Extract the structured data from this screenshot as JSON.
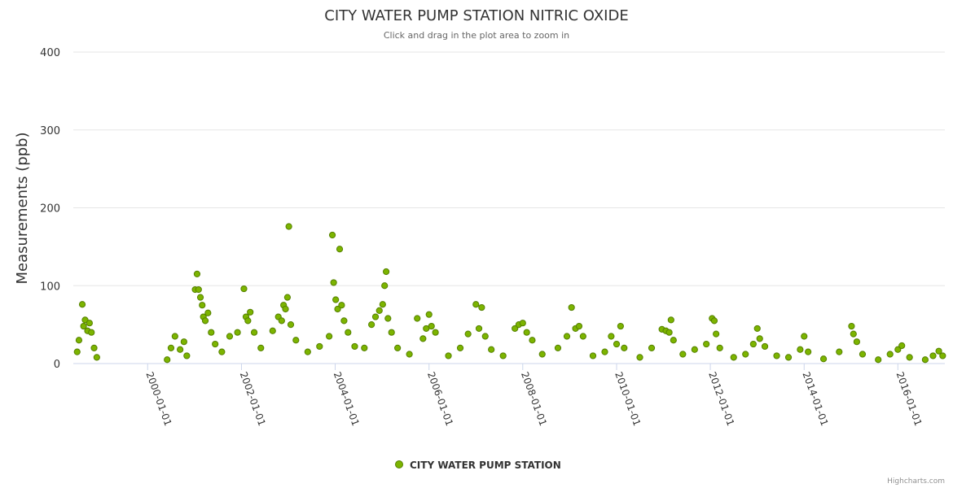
{
  "chart_data": {
    "type": "scatter",
    "title": "CITY WATER PUMP STATION NITRIC OXIDE",
    "subtitle": "Click and drag in the plot area to zoom in",
    "ylabel": "Measurements (ppb)",
    "xlabel": "",
    "ylim": [
      0,
      400
    ],
    "y_ticks": [
      "0",
      "100",
      "200",
      "300",
      "400"
    ],
    "x_ticks": [
      "2000-01-01",
      "2002-01-01",
      "2004-01-01",
      "2006-01-01",
      "2008-01-01",
      "2010-01-01",
      "2012-01-01",
      "2014-01-01",
      "2016-01-01"
    ],
    "x_range": [
      "1998-06-01",
      "2017-01-01"
    ],
    "grid": "horizontal",
    "legend_position": "bottom-center",
    "marker_color": "#7cb400",
    "marker_stroke": "#558000",
    "series": [
      {
        "name": "CITY WATER PUMP STATION",
        "points": [
          [
            "1998-07-01",
            15
          ],
          [
            "1998-07-15",
            30
          ],
          [
            "1998-08-10",
            76
          ],
          [
            "1998-08-20",
            48
          ],
          [
            "1998-09-01",
            56
          ],
          [
            "1998-09-20",
            42
          ],
          [
            "1998-10-05",
            52
          ],
          [
            "1998-10-20",
            40
          ],
          [
            "1998-11-10",
            20
          ],
          [
            "1998-12-01",
            8
          ],
          [
            "2000-06-01",
            5
          ],
          [
            "2000-07-01",
            20
          ],
          [
            "2000-08-01",
            35
          ],
          [
            "2000-09-10",
            18
          ],
          [
            "2000-10-10",
            28
          ],
          [
            "2000-11-01",
            10
          ],
          [
            "2001-01-05",
            95
          ],
          [
            "2001-01-20",
            115
          ],
          [
            "2001-02-01",
            95
          ],
          [
            "2001-02-15",
            85
          ],
          [
            "2001-03-01",
            75
          ],
          [
            "2001-03-10",
            60
          ],
          [
            "2001-03-25",
            55
          ],
          [
            "2001-04-15",
            65
          ],
          [
            "2001-05-10",
            40
          ],
          [
            "2001-06-10",
            25
          ],
          [
            "2001-08-01",
            15
          ],
          [
            "2001-10-01",
            35
          ],
          [
            "2001-12-01",
            40
          ],
          [
            "2002-01-20",
            96
          ],
          [
            "2002-02-05",
            60
          ],
          [
            "2002-02-20",
            55
          ],
          [
            "2002-03-10",
            66
          ],
          [
            "2002-04-10",
            40
          ],
          [
            "2002-06-01",
            20
          ],
          [
            "2002-09-01",
            42
          ],
          [
            "2002-10-15",
            60
          ],
          [
            "2002-11-10",
            55
          ],
          [
            "2002-11-25",
            75
          ],
          [
            "2002-12-10",
            70
          ],
          [
            "2002-12-25",
            85
          ],
          [
            "2003-01-05",
            176
          ],
          [
            "2003-01-20",
            50
          ],
          [
            "2003-03-01",
            30
          ],
          [
            "2003-06-01",
            15
          ],
          [
            "2003-09-01",
            22
          ],
          [
            "2003-11-15",
            35
          ],
          [
            "2003-12-10",
            165
          ],
          [
            "2003-12-20",
            104
          ],
          [
            "2004-01-05",
            82
          ],
          [
            "2004-01-20",
            70
          ],
          [
            "2004-02-05",
            147
          ],
          [
            "2004-02-20",
            75
          ],
          [
            "2004-03-10",
            55
          ],
          [
            "2004-04-10",
            40
          ],
          [
            "2004-06-01",
            22
          ],
          [
            "2004-08-15",
            20
          ],
          [
            "2004-10-10",
            50
          ],
          [
            "2004-11-10",
            60
          ],
          [
            "2004-12-10",
            68
          ],
          [
            "2005-01-05",
            76
          ],
          [
            "2005-01-20",
            100
          ],
          [
            "2005-02-01",
            118
          ],
          [
            "2005-02-15",
            58
          ],
          [
            "2005-03-15",
            40
          ],
          [
            "2005-05-01",
            20
          ],
          [
            "2005-08-01",
            12
          ],
          [
            "2005-10-01",
            58
          ],
          [
            "2005-11-15",
            32
          ],
          [
            "2005-12-10",
            45
          ],
          [
            "2006-01-01",
            63
          ],
          [
            "2006-01-20",
            48
          ],
          [
            "2006-02-20",
            40
          ],
          [
            "2006-06-01",
            10
          ],
          [
            "2006-09-01",
            20
          ],
          [
            "2006-11-01",
            38
          ],
          [
            "2007-01-01",
            76
          ],
          [
            "2007-01-25",
            45
          ],
          [
            "2007-02-15",
            72
          ],
          [
            "2007-03-15",
            35
          ],
          [
            "2007-05-01",
            18
          ],
          [
            "2007-08-01",
            10
          ],
          [
            "2007-11-01",
            45
          ],
          [
            "2007-12-01",
            50
          ],
          [
            "2008-01-01",
            52
          ],
          [
            "2008-02-01",
            40
          ],
          [
            "2008-03-15",
            30
          ],
          [
            "2008-06-01",
            12
          ],
          [
            "2008-10-01",
            20
          ],
          [
            "2008-12-10",
            35
          ],
          [
            "2009-01-15",
            72
          ],
          [
            "2009-02-15",
            45
          ],
          [
            "2009-03-15",
            48
          ],
          [
            "2009-04-15",
            35
          ],
          [
            "2009-07-01",
            10
          ],
          [
            "2009-10-01",
            15
          ],
          [
            "2009-11-20",
            35
          ],
          [
            "2010-01-01",
            25
          ],
          [
            "2010-02-01",
            48
          ],
          [
            "2010-03-01",
            20
          ],
          [
            "2010-07-01",
            8
          ],
          [
            "2010-10-01",
            20
          ],
          [
            "2010-12-20",
            44
          ],
          [
            "2011-01-20",
            42
          ],
          [
            "2011-02-15",
            40
          ],
          [
            "2011-03-01",
            56
          ],
          [
            "2011-03-20",
            30
          ],
          [
            "2011-06-01",
            12
          ],
          [
            "2011-09-01",
            18
          ],
          [
            "2011-12-01",
            25
          ],
          [
            "2012-01-15",
            58
          ],
          [
            "2012-02-01",
            55
          ],
          [
            "2012-02-15",
            38
          ],
          [
            "2012-03-15",
            20
          ],
          [
            "2012-07-01",
            8
          ],
          [
            "2012-10-01",
            12
          ],
          [
            "2012-12-01",
            25
          ],
          [
            "2013-01-01",
            45
          ],
          [
            "2013-01-20",
            32
          ],
          [
            "2013-03-01",
            22
          ],
          [
            "2013-06-01",
            10
          ],
          [
            "2013-09-01",
            8
          ],
          [
            "2013-12-01",
            18
          ],
          [
            "2014-01-01",
            35
          ],
          [
            "2014-02-01",
            15
          ],
          [
            "2014-06-01",
            6
          ],
          [
            "2014-10-01",
            15
          ],
          [
            "2015-01-05",
            48
          ],
          [
            "2015-01-20",
            38
          ],
          [
            "2015-02-15",
            28
          ],
          [
            "2015-04-01",
            12
          ],
          [
            "2015-08-01",
            5
          ],
          [
            "2015-11-01",
            12
          ],
          [
            "2016-01-01",
            18
          ],
          [
            "2016-02-01",
            23
          ],
          [
            "2016-04-01",
            8
          ],
          [
            "2016-08-01",
            5
          ],
          [
            "2016-10-01",
            10
          ],
          [
            "2016-11-15",
            16
          ],
          [
            "2016-12-15",
            10
          ]
        ]
      }
    ]
  },
  "credits": "Highcharts.com"
}
